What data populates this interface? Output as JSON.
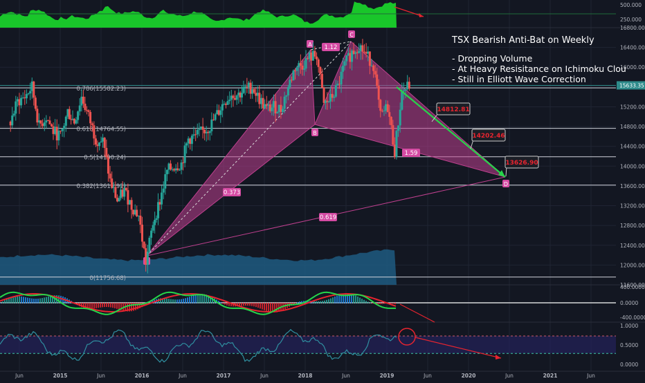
{
  "annotation": {
    "title": "TSX Bearish Anti-Bat on Weekly",
    "bullets": [
      "- Dropping Volume",
      "- At Heavy Resisitance on Ichimoku Clou",
      "- Still in Elliott Wave Correction"
    ]
  },
  "colors": {
    "background": "#131722",
    "grid": "#1f2433",
    "axis_text": "#b2b5be",
    "pattern_fill": "#c0408f",
    "pattern_label": "#d54ba3",
    "green": "#26d64a",
    "red": "#e8242f",
    "volume_area": "#19c62a",
    "bottom_volume": "#1f5a80",
    "rsi_line": "#2f8fa0",
    "rsi_band": "#23225a"
  },
  "chart_data": {
    "type": "candlestick",
    "timeframe": "weekly",
    "x_ticks": [
      "Jun",
      "2015",
      "Jun",
      "2016",
      "Jun",
      "2017",
      "Jun",
      "2018",
      "Jun",
      "2019",
      "Jun",
      "2020",
      "Jun",
      "2021",
      "Jun"
    ],
    "price_axis": {
      "ticks": [
        "16800.00",
        "16400.00",
        "16000.00",
        "15600.00",
        "15200.00",
        "14800.00",
        "14400.00",
        "14000.00",
        "13600.00",
        "13200.00",
        "12800.00",
        "12400.00",
        "12000.00",
        "11600.00"
      ],
      "tick_values": [
        16800,
        16400,
        16000,
        15600,
        15200,
        14800,
        14400,
        14000,
        13600,
        13200,
        12800,
        12400,
        12000,
        11600
      ],
      "ylim": [
        11400,
        16900
      ],
      "current_price": "15633.35"
    },
    "fib_levels": [
      {
        "label": "0.786(15582.23)",
        "value": 15582.23
      },
      {
        "label": "0.618(14764.55)",
        "value": 14764.55
      },
      {
        "label": "0.5(14190.24)",
        "value": 14190.24
      },
      {
        "label": "0.382(13615.92)",
        "value": 13615.92
      },
      {
        "label": "0(11756.68)",
        "value": 11756.68
      }
    ],
    "pattern_points": [
      {
        "name": "X",
        "date": "2016-01-22",
        "value": 11840
      },
      {
        "name": "A",
        "date": "2018-01-05",
        "value": 16421
      },
      {
        "name": "B",
        "date": "2018-02-09",
        "value": 14786
      },
      {
        "name": "C",
        "date": "2018-07-13",
        "value": 16586
      },
      {
        "name": "D",
        "date": "2020-05-15",
        "value": 13625
      }
    ],
    "ratios": [
      {
        "label": "1.12",
        "between": "A-C"
      },
      {
        "label": "0.373",
        "between": "X-B"
      },
      {
        "label": "0.619",
        "between": "X-D"
      },
      {
        "label": "1.59",
        "between": "B-D"
      }
    ],
    "targets": [
      {
        "label": "14812.81",
        "value": 14812.81,
        "date": "2019-07-01"
      },
      {
        "label": "14202.46",
        "value": 14202.46,
        "date": "2019-12-20"
      },
      {
        "label": "13626.90",
        "value": 13626.9,
        "date": "2020-05-15"
      }
    ],
    "prices": [
      [
        "2014-06",
        14900
      ],
      [
        "2014-07",
        15300
      ],
      [
        "2014-08",
        15400
      ],
      [
        "2014-09",
        15600
      ],
      [
        "2014-10",
        14800
      ],
      [
        "2014-11",
        15000
      ],
      [
        "2014-12",
        14700
      ],
      [
        "2015-01",
        14600
      ],
      [
        "2015-02",
        15100
      ],
      [
        "2015-03",
        14900
      ],
      [
        "2015-04",
        15400
      ],
      [
        "2015-05",
        15000
      ],
      [
        "2015-06",
        14550
      ],
      [
        "2015-07",
        14500
      ],
      [
        "2015-08",
        13700
      ],
      [
        "2015-09",
        13300
      ],
      [
        "2015-10",
        13500
      ],
      [
        "2015-11",
        13200
      ],
      [
        "2015-12",
        13000
      ],
      [
        "2016-01",
        12050
      ],
      [
        "2016-02",
        12850
      ],
      [
        "2016-03",
        13300
      ],
      [
        "2016-04",
        13900
      ],
      [
        "2016-05",
        14000
      ],
      [
        "2016-06",
        14050
      ],
      [
        "2016-07",
        14550
      ],
      [
        "2016-08",
        14600
      ],
      [
        "2016-09",
        14700
      ],
      [
        "2016-10",
        14800
      ],
      [
        "2016-11",
        15050
      ],
      [
        "2016-12",
        15300
      ],
      [
        "2017-01",
        15450
      ],
      [
        "2017-02",
        15450
      ],
      [
        "2017-03",
        15550
      ],
      [
        "2017-04",
        15600
      ],
      [
        "2017-05",
        15350
      ],
      [
        "2017-06",
        15150
      ],
      [
        "2017-07",
        15200
      ],
      [
        "2017-08",
        15150
      ],
      [
        "2017-09",
        15600
      ],
      [
        "2017-10",
        16000
      ],
      [
        "2017-11",
        16050
      ],
      [
        "2017-12",
        16200
      ],
      [
        "2018-01",
        16250
      ],
      [
        "2018-02",
        15250
      ],
      [
        "2018-03",
        15350
      ],
      [
        "2018-04",
        15600
      ],
      [
        "2018-05",
        16050
      ],
      [
        "2018-06",
        16300
      ],
      [
        "2018-07",
        16450
      ],
      [
        "2018-08",
        16250
      ],
      [
        "2018-09",
        16050
      ],
      [
        "2018-10",
        15000
      ],
      [
        "2018-11",
        15200
      ],
      [
        "2018-12",
        14300
      ],
      [
        "2019-01",
        15500
      ],
      [
        "2019-02",
        15633
      ]
    ],
    "indicators": {
      "top_volume": {
        "ticks": [
          "500.000",
          "250.000"
        ]
      },
      "macd": {
        "ticks": [
          "400.0000",
          "0.0000",
          "-400.0000"
        ]
      },
      "rsi": {
        "ticks": [
          "1.0000",
          "0.5000",
          "0.0000"
        ]
      }
    }
  }
}
